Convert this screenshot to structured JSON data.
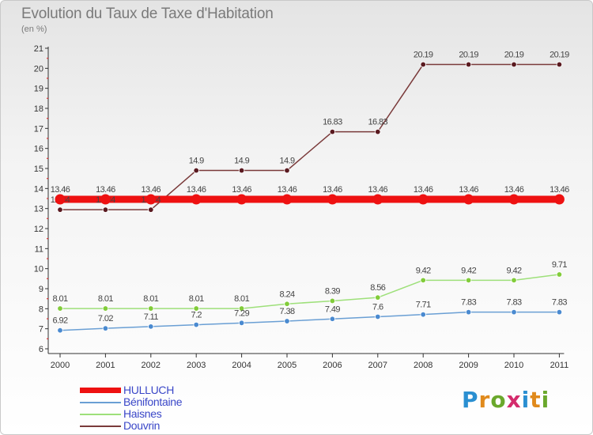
{
  "header": {
    "title": "Evolution du Taux de Taxe d'Habitation",
    "subtitle": "(en %)"
  },
  "logo": {
    "text": "Proxiti"
  },
  "chart_data": {
    "type": "line",
    "title": "Evolution du Taux de Taxe d'Habitation",
    "subtitle": "(en %)",
    "xlabel": "",
    "ylabel": "",
    "categories": [
      "2000",
      "2001",
      "2002",
      "2003",
      "2004",
      "2005",
      "2006",
      "2007",
      "2008",
      "2009",
      "2010",
      "2011"
    ],
    "ylim": [
      6,
      21
    ],
    "yticks": [
      6,
      7,
      8,
      9,
      10,
      11,
      12,
      13,
      14,
      15,
      16,
      17,
      18,
      19,
      20,
      21
    ],
    "grid": false,
    "legend_position": "bottom-left",
    "series": [
      {
        "name": "HULLUCH",
        "color": "#ee1111",
        "values": [
          13.46,
          13.46,
          13.46,
          13.46,
          13.46,
          13.46,
          13.46,
          13.46,
          13.46,
          13.46,
          13.46,
          13.46
        ],
        "labels": [
          "13.46",
          "13.46",
          "13.46",
          "13.46",
          "13.46",
          "13.46",
          "13.46",
          "13.46",
          "13.46",
          "13.46",
          "13.46",
          "13.46"
        ]
      },
      {
        "name": "Bénifontaine",
        "color": "#6a9fd4",
        "marker": "#4a8ad0",
        "values": [
          6.92,
          7.02,
          7.11,
          7.2,
          7.29,
          7.38,
          7.49,
          7.6,
          7.71,
          7.83,
          7.83,
          7.83
        ],
        "labels": [
          "6.92",
          "7.02",
          "7.11",
          "7.2",
          "7.29",
          "7.38",
          "7.49",
          "7.6",
          "7.71",
          "7.83",
          "7.83",
          "7.83"
        ]
      },
      {
        "name": "Haisnes",
        "color": "#9ee07a",
        "marker": "#82cc3a",
        "values": [
          8.01,
          8.01,
          8.01,
          8.01,
          8.01,
          8.24,
          8.39,
          8.56,
          9.42,
          9.42,
          9.42,
          9.71
        ],
        "labels": [
          "8.01",
          "8.01",
          "8.01",
          "8.01",
          "8.01",
          "8.24",
          "8.39",
          "8.56",
          "9.42",
          "9.42",
          "9.42",
          "9.71"
        ]
      },
      {
        "name": "Douvrin",
        "color": "#7a3a3a",
        "marker": "#5a1a20",
        "values": [
          12.94,
          12.94,
          12.94,
          14.9,
          14.9,
          14.9,
          16.83,
          16.83,
          20.19,
          20.19,
          20.19,
          20.19
        ],
        "labels": [
          "12.94",
          "12.94",
          "12.94",
          "14.9",
          "14.9",
          "14.9",
          "16.83",
          "16.83",
          "20.19",
          "20.19",
          "20.19",
          "20.19"
        ]
      }
    ]
  }
}
